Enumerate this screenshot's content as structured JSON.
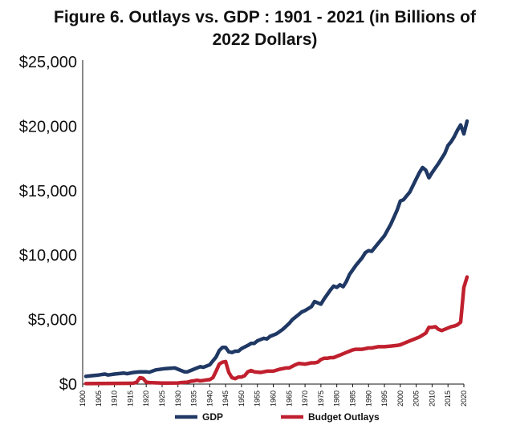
{
  "chart_data": {
    "type": "line",
    "title": "Figure 6. Outlays vs. GDP : 1901 - 2021 (in Billions of 2022 Dollars)",
    "xlabel": "",
    "ylabel": "",
    "xlim": [
      1900,
      2020
    ],
    "ylim": [
      0,
      25000
    ],
    "y_ticks": [
      0,
      5000,
      10000,
      15000,
      20000,
      25000
    ],
    "y_tick_labels": [
      "$0",
      "$5,000",
      "$10,000",
      "$15,000",
      "$20,000",
      "$25,000"
    ],
    "x_ticks": [
      1900,
      1905,
      1910,
      1915,
      1920,
      1925,
      1930,
      1935,
      1940,
      1945,
      1950,
      1955,
      1960,
      1965,
      1970,
      1975,
      1980,
      1985,
      1990,
      1995,
      2000,
      2005,
      2010,
      2015,
      2020
    ],
    "x_tick_labels": [
      "1900",
      "1905",
      "1910",
      "1915",
      "1920",
      "1925",
      "1930",
      "1935",
      "1940",
      "1945",
      "1950",
      "1955",
      "1960",
      "1965",
      "1970",
      "1975",
      "1980",
      "1985",
      "1990",
      "1995",
      "2000",
      "2005",
      "2010",
      "2015",
      "2020"
    ],
    "grid": false,
    "legend_position": "bottom",
    "series": [
      {
        "name": "GDP",
        "color": "#1f3864",
        "points": [
          [
            1901,
            600
          ],
          [
            1903,
            650
          ],
          [
            1905,
            700
          ],
          [
            1907,
            780
          ],
          [
            1908,
            700
          ],
          [
            1910,
            780
          ],
          [
            1913,
            850
          ],
          [
            1914,
            800
          ],
          [
            1916,
            900
          ],
          [
            1918,
            950
          ],
          [
            1920,
            950
          ],
          [
            1921,
            920
          ],
          [
            1923,
            1100
          ],
          [
            1926,
            1200
          ],
          [
            1929,
            1250
          ],
          [
            1930,
            1150
          ],
          [
            1932,
            950
          ],
          [
            1933,
            950
          ],
          [
            1935,
            1150
          ],
          [
            1937,
            1350
          ],
          [
            1938,
            1300
          ],
          [
            1940,
            1500
          ],
          [
            1942,
            2100
          ],
          [
            1943,
            2600
          ],
          [
            1944,
            2850
          ],
          [
            1945,
            2850
          ],
          [
            1946,
            2500
          ],
          [
            1947,
            2450
          ],
          [
            1948,
            2550
          ],
          [
            1949,
            2550
          ],
          [
            1950,
            2750
          ],
          [
            1952,
            3000
          ],
          [
            1953,
            3150
          ],
          [
            1954,
            3150
          ],
          [
            1955,
            3350
          ],
          [
            1957,
            3550
          ],
          [
            1958,
            3500
          ],
          [
            1959,
            3700
          ],
          [
            1960,
            3800
          ],
          [
            1961,
            3900
          ],
          [
            1963,
            4250
          ],
          [
            1965,
            4700
          ],
          [
            1966,
            5000
          ],
          [
            1968,
            5400
          ],
          [
            1969,
            5600
          ],
          [
            1970,
            5700
          ],
          [
            1972,
            6000
          ],
          [
            1973,
            6400
          ],
          [
            1974,
            6300
          ],
          [
            1975,
            6200
          ],
          [
            1976,
            6600
          ],
          [
            1978,
            7300
          ],
          [
            1979,
            7600
          ],
          [
            1980,
            7500
          ],
          [
            1981,
            7700
          ],
          [
            1982,
            7550
          ],
          [
            1983,
            7950
          ],
          [
            1984,
            8500
          ],
          [
            1986,
            9200
          ],
          [
            1988,
            9800
          ],
          [
            1989,
            10200
          ],
          [
            1990,
            10350
          ],
          [
            1991,
            10300
          ],
          [
            1993,
            10900
          ],
          [
            1995,
            11500
          ],
          [
            1997,
            12400
          ],
          [
            1999,
            13500
          ],
          [
            2000,
            14200
          ],
          [
            2001,
            14300
          ],
          [
            2003,
            14900
          ],
          [
            2005,
            15900
          ],
          [
            2006,
            16400
          ],
          [
            2007,
            16800
          ],
          [
            2008,
            16600
          ],
          [
            2009,
            16000
          ],
          [
            2010,
            16400
          ],
          [
            2012,
            17100
          ],
          [
            2014,
            17900
          ],
          [
            2015,
            18500
          ],
          [
            2016,
            18800
          ],
          [
            2017,
            19200
          ],
          [
            2018,
            19700
          ],
          [
            2019,
            20100
          ],
          [
            2020,
            19400
          ],
          [
            2021,
            20400
          ]
        ]
      },
      {
        "name": "Budget Outlays",
        "color": "#c0202e",
        "points": [
          [
            1901,
            40
          ],
          [
            1905,
            45
          ],
          [
            1910,
            55
          ],
          [
            1915,
            60
          ],
          [
            1916,
            70
          ],
          [
            1917,
            150
          ],
          [
            1918,
            500
          ],
          [
            1919,
            450
          ],
          [
            1920,
            150
          ],
          [
            1921,
            120
          ],
          [
            1925,
            80
          ],
          [
            1930,
            90
          ],
          [
            1931,
            120
          ],
          [
            1933,
            150
          ],
          [
            1934,
            220
          ],
          [
            1935,
            250
          ],
          [
            1936,
            300
          ],
          [
            1937,
            250
          ],
          [
            1938,
            280
          ],
          [
            1939,
            320
          ],
          [
            1940,
            350
          ],
          [
            1941,
            500
          ],
          [
            1942,
            1000
          ],
          [
            1943,
            1550
          ],
          [
            1944,
            1700
          ],
          [
            1945,
            1750
          ],
          [
            1946,
            900
          ],
          [
            1947,
            500
          ],
          [
            1948,
            420
          ],
          [
            1949,
            550
          ],
          [
            1950,
            550
          ],
          [
            1951,
            650
          ],
          [
            1952,
            950
          ],
          [
            1953,
            1050
          ],
          [
            1954,
            950
          ],
          [
            1956,
            900
          ],
          [
            1958,
            1000
          ],
          [
            1960,
            1000
          ],
          [
            1962,
            1150
          ],
          [
            1964,
            1250
          ],
          [
            1965,
            1250
          ],
          [
            1967,
            1500
          ],
          [
            1968,
            1600
          ],
          [
            1970,
            1550
          ],
          [
            1972,
            1650
          ],
          [
            1973,
            1650
          ],
          [
            1974,
            1700
          ],
          [
            1975,
            1900
          ],
          [
            1976,
            2000
          ],
          [
            1977,
            2000
          ],
          [
            1978,
            2050
          ],
          [
            1979,
            2050
          ],
          [
            1980,
            2150
          ],
          [
            1982,
            2350
          ],
          [
            1983,
            2450
          ],
          [
            1985,
            2650
          ],
          [
            1986,
            2700
          ],
          [
            1988,
            2700
          ],
          [
            1990,
            2800
          ],
          [
            1991,
            2800
          ],
          [
            1993,
            2900
          ],
          [
            1995,
            2900
          ],
          [
            1997,
            2950
          ],
          [
            1999,
            3000
          ],
          [
            2000,
            3050
          ],
          [
            2002,
            3250
          ],
          [
            2004,
            3450
          ],
          [
            2005,
            3550
          ],
          [
            2006,
            3650
          ],
          [
            2008,
            3950
          ],
          [
            2009,
            4400
          ],
          [
            2010,
            4400
          ],
          [
            2011,
            4450
          ],
          [
            2012,
            4250
          ],
          [
            2013,
            4150
          ],
          [
            2014,
            4250
          ],
          [
            2015,
            4350
          ],
          [
            2016,
            4450
          ],
          [
            2017,
            4500
          ],
          [
            2018,
            4600
          ],
          [
            2019,
            4800
          ],
          [
            2020,
            7500
          ],
          [
            2021,
            8300
          ]
        ]
      }
    ]
  }
}
